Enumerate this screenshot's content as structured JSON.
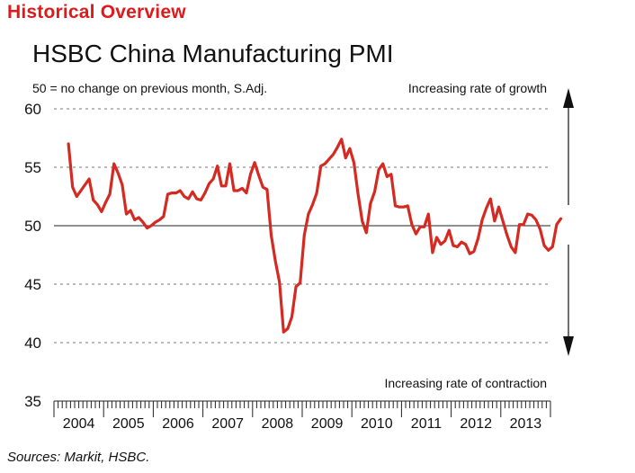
{
  "header": {
    "section": "Historical Overview"
  },
  "footer": {
    "source": "Sources: Markit, HSBC."
  },
  "colors": {
    "accent": "#e0191a",
    "line": "#d42a22"
  },
  "chart_data": {
    "type": "line",
    "title": "HSBC China Manufacturing PMI",
    "subtitle": "50 = no change on previous month, S.Adj.",
    "annotations": {
      "top": "Increasing rate of growth",
      "bottom": "Increasing rate of contraction"
    },
    "ylim": [
      35,
      60
    ],
    "yticks": [
      35,
      40,
      45,
      50,
      55,
      60
    ],
    "reference_line": 50,
    "grid": "dashed horizontal",
    "xlabels": [
      "2004",
      "2005",
      "2006",
      "2007",
      "2008",
      "2009",
      "2010",
      "2011",
      "2012",
      "2013"
    ],
    "x_start": "2004-04",
    "x_end": "2013-12",
    "series": [
      {
        "values": [
          57.0,
          53.3,
          52.5,
          53.0,
          53.5,
          54.0,
          52.2,
          51.8,
          51.2,
          52.0,
          52.7,
          55.3,
          54.5,
          53.5,
          51.0,
          51.3,
          50.5,
          50.7,
          50.3,
          49.8,
          50.0,
          50.3,
          50.5,
          50.8,
          52.7,
          52.8,
          52.8,
          53.0,
          52.5,
          52.3,
          52.9,
          52.3,
          52.2,
          52.8,
          53.6,
          54.0,
          55.1,
          53.4,
          53.4,
          55.3,
          53.0,
          53.0,
          53.2,
          52.8,
          54.4,
          55.4,
          54.3,
          53.3,
          53.1,
          49.2,
          47.0,
          45.2,
          40.9,
          41.2,
          42.2,
          44.8,
          45.1,
          49.2,
          51.0,
          51.8,
          52.8,
          55.1,
          55.3,
          55.7,
          56.1,
          56.7,
          57.4,
          55.8,
          56.6,
          55.4,
          52.7,
          50.4,
          49.4,
          51.9,
          52.9,
          54.8,
          55.3,
          54.2,
          54.4,
          51.7,
          51.6,
          51.6,
          51.7,
          50.1,
          49.3,
          49.9,
          49.9,
          51.0,
          47.7,
          49.0,
          48.4,
          48.7,
          49.6,
          48.3,
          48.2,
          48.6,
          48.4,
          47.6,
          47.8,
          48.9,
          50.5,
          51.5,
          52.3,
          50.4,
          51.6,
          50.4,
          49.2,
          48.2,
          47.7,
          50.1,
          50.1,
          51.0,
          50.9,
          50.5,
          49.7,
          48.3,
          47.9,
          48.2,
          50.1,
          50.6
        ]
      }
    ]
  }
}
